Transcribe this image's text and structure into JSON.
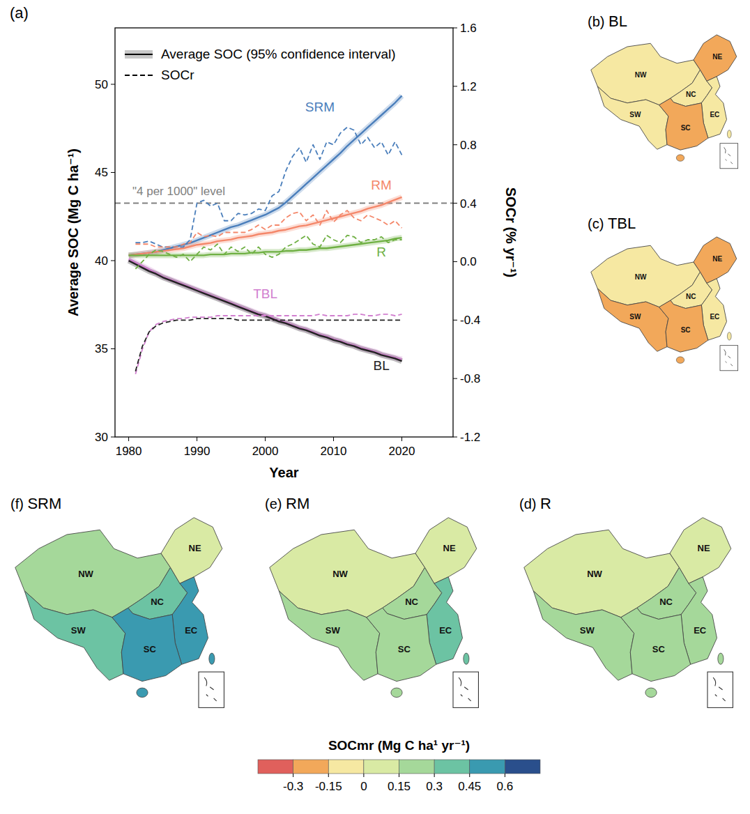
{
  "chart_data": [
    {
      "type": "line",
      "panel": "(a)",
      "x_label": "Year",
      "y_label": "Average SOC (Mg C ha⁻¹)",
      "y2_label": "SOCr (% yr⁻¹)",
      "x": [
        1980,
        1981,
        1982,
        1983,
        1984,
        1985,
        1986,
        1987,
        1988,
        1989,
        1990,
        1991,
        1992,
        1993,
        1994,
        1995,
        1996,
        1997,
        1998,
        1999,
        2000,
        2001,
        2002,
        2003,
        2004,
        2005,
        2006,
        2007,
        2008,
        2009,
        2010,
        2011,
        2012,
        2013,
        2014,
        2015,
        2016,
        2017,
        2018,
        2019,
        2020
      ],
      "xlim": [
        1978,
        2027.5
      ],
      "xticks": [
        1980,
        1990,
        2000,
        2010,
        2020
      ],
      "ylim": [
        30,
        53.2
      ],
      "yticks": [
        30,
        35,
        40,
        45,
        50
      ],
      "y2lim": [
        -1.2,
        1.6
      ],
      "y2ticks": [
        -1.2,
        -0.8,
        -0.4,
        {
          "value": 0,
          "label": "0.0"
        },
        0.4,
        0.8,
        1.2,
        1.6
      ],
      "legend": "upper left",
      "legend_entries": [
        {
          "label": "Average SOC (95% confidence interval)",
          "line_style": "solid"
        },
        {
          "label": "SOCr",
          "line_style": "dashed"
        }
      ],
      "reference_lines": [
        {
          "label": "\"4 per 1000\" level",
          "value": 0.4,
          "axis": "y2",
          "color": "#808080"
        }
      ],
      "series": [
        {
          "name": "SRM",
          "color": "#4a7ebb",
          "line_style": "solid",
          "values": [
            40.3,
            40.35,
            40.4,
            40.45,
            40.5,
            40.6,
            40.7,
            40.8,
            40.9,
            41.0,
            41.15,
            41.3,
            41.45,
            41.6,
            41.75,
            41.9,
            42.0,
            42.15,
            42.3,
            42.45,
            42.6,
            42.8,
            43.0,
            43.3,
            43.65,
            44.0,
            44.35,
            44.7,
            45.05,
            45.4,
            45.75,
            46.1,
            46.5,
            46.85,
            47.2,
            47.55,
            47.9,
            48.25,
            48.6,
            48.95,
            49.35
          ]
        },
        {
          "name": "RM",
          "color": "#f4876a",
          "line_style": "solid",
          "values": [
            40.3,
            40.35,
            40.4,
            40.45,
            40.5,
            40.55,
            40.6,
            40.65,
            40.7,
            40.8,
            40.9,
            40.95,
            41.0,
            41.1,
            41.15,
            41.2,
            41.3,
            41.35,
            41.4,
            41.5,
            41.55,
            41.6,
            41.7,
            41.75,
            41.85,
            41.95,
            42.0,
            42.1,
            42.2,
            42.3,
            42.4,
            42.5,
            42.6,
            42.7,
            42.8,
            42.95,
            43.05,
            43.15,
            43.3,
            43.45,
            43.6
          ]
        },
        {
          "name": "R",
          "color": "#6fb043",
          "line_style": "solid",
          "values": [
            40.3,
            40.3,
            40.3,
            40.3,
            40.3,
            40.3,
            40.3,
            40.3,
            40.3,
            40.3,
            40.3,
            40.3,
            40.35,
            40.35,
            40.35,
            40.4,
            40.4,
            40.4,
            40.45,
            40.45,
            40.5,
            40.5,
            40.5,
            40.55,
            40.55,
            40.6,
            40.6,
            40.65,
            40.7,
            40.7,
            40.75,
            40.8,
            40.85,
            40.9,
            40.95,
            41.0,
            41.05,
            41.1,
            41.15,
            41.25,
            41.3
          ]
        },
        {
          "name": "TBL",
          "color": "#d17fcf",
          "line_style": "solid",
          "values": [
            40.1,
            39.9,
            39.7,
            39.5,
            39.3,
            39.1,
            38.95,
            38.8,
            38.65,
            38.5,
            38.35,
            38.2,
            38.05,
            37.9,
            37.75,
            37.6,
            37.45,
            37.3,
            37.15,
            37.0,
            36.9,
            36.75,
            36.6,
            36.5,
            36.35,
            36.2,
            36.1,
            35.95,
            35.8,
            35.7,
            35.55,
            35.45,
            35.3,
            35.2,
            35.05,
            34.95,
            34.85,
            34.7,
            34.6,
            34.5,
            34.4
          ]
        },
        {
          "name": "BL",
          "color": "#222222",
          "line_style": "solid",
          "values": [
            40.0,
            39.8,
            39.6,
            39.4,
            39.25,
            39.05,
            38.9,
            38.75,
            38.6,
            38.45,
            38.3,
            38.15,
            38.0,
            37.85,
            37.7,
            37.55,
            37.4,
            37.25,
            37.1,
            36.95,
            36.85,
            36.7,
            36.55,
            36.45,
            36.3,
            36.15,
            36.05,
            35.9,
            35.75,
            35.65,
            35.5,
            35.4,
            35.25,
            35.15,
            35.0,
            34.9,
            34.8,
            34.65,
            34.55,
            34.45,
            34.3
          ]
        },
        {
          "color": "#4a7ebb",
          "line_style": "dashed",
          "axis": "y2",
          "values": [
            null,
            0.13,
            0.13,
            0.14,
            0.12,
            0.1,
            0.1,
            0.1,
            0.1,
            0.15,
            0.4,
            0.42,
            0.38,
            0.4,
            0.28,
            0.28,
            0.33,
            0.32,
            0.33,
            0.36,
            0.35,
            0.45,
            0.48,
            0.62,
            0.72,
            0.78,
            0.68,
            0.8,
            0.7,
            0.82,
            0.8,
            0.88,
            0.92,
            0.9,
            0.8,
            0.85,
            0.78,
            0.82,
            0.73,
            0.82,
            0.73
          ]
        },
        {
          "color": "#f4876a",
          "line_style": "dashed",
          "axis": "y2",
          "values": [
            null,
            0.12,
            0.12,
            0.12,
            0.1,
            0.1,
            0.1,
            0.1,
            0.12,
            0.13,
            0.2,
            0.17,
            0.18,
            0.17,
            0.2,
            0.2,
            0.2,
            0.2,
            0.22,
            0.25,
            0.22,
            0.25,
            0.25,
            0.3,
            0.33,
            0.34,
            0.28,
            0.32,
            0.25,
            0.35,
            0.27,
            0.32,
            0.35,
            0.3,
            0.28,
            0.32,
            0.3,
            0.28,
            0.25,
            0.28,
            0.23
          ]
        },
        {
          "color": "#6fb043",
          "line_style": "dashed",
          "axis": "y2",
          "values": [
            null,
            -0.05,
            0,
            0.05,
            0.08,
            0.07,
            0.05,
            0.03,
            0.05,
            0,
            0.05,
            0.1,
            0.08,
            0.12,
            0.05,
            0.1,
            0.07,
            0.1,
            0.05,
            0.1,
            0.05,
            0.03,
            0.05,
            0.1,
            0.12,
            0.15,
            0.18,
            0.12,
            0.1,
            0.18,
            0.15,
            0.13,
            0.18,
            0.17,
            0.13,
            0.15,
            0.15,
            0.17,
            0.13,
            0.15,
            0.15
          ]
        },
        {
          "color": "#d17fcf",
          "line_style": "dashed",
          "axis": "y2",
          "values": [
            null,
            -0.77,
            -0.6,
            -0.48,
            -0.43,
            -0.41,
            -0.4,
            -0.39,
            -0.39,
            -0.38,
            -0.38,
            -0.38,
            -0.38,
            -0.37,
            -0.37,
            -0.37,
            -0.37,
            -0.37,
            -0.37,
            -0.37,
            -0.37,
            -0.37,
            -0.37,
            -0.37,
            -0.37,
            -0.37,
            -0.37,
            -0.37,
            -0.36,
            -0.37,
            -0.37,
            -0.37,
            -0.37,
            -0.36,
            -0.36,
            -0.37,
            -0.37,
            -0.36,
            -0.36,
            -0.37,
            -0.36
          ]
        },
        {
          "color": "#222222",
          "line_style": "dashed",
          "axis": "y2",
          "values": [
            null,
            -0.75,
            -0.58,
            -0.48,
            -0.44,
            -0.42,
            -0.41,
            -0.4,
            -0.4,
            -0.4,
            -0.39,
            -0.39,
            -0.39,
            -0.39,
            -0.39,
            -0.39,
            -0.4,
            -0.4,
            -0.4,
            -0.4,
            -0.4,
            -0.4,
            -0.4,
            -0.4,
            -0.4,
            -0.4,
            -0.4,
            -0.4,
            -0.4,
            -0.4,
            -0.4,
            -0.4,
            -0.4,
            -0.4,
            -0.4,
            -0.4,
            -0.4,
            -0.4,
            -0.4,
            -0.4,
            -0.4
          ]
        }
      ]
    },
    {
      "type": "map",
      "panel": "(b)",
      "title": "BL",
      "regions": [
        {
          "label": "NW",
          "value": -0.05
        },
        {
          "label": "SW",
          "value": -0.15
        },
        {
          "label": "NC",
          "value": -0.1
        },
        {
          "label": "NE",
          "value": -0.2
        },
        {
          "label": "EC",
          "value": -0.1
        },
        {
          "label": "SC",
          "value": -0.2
        }
      ]
    },
    {
      "type": "map",
      "panel": "(c)",
      "title": "TBL",
      "regions": [
        {
          "label": "NW",
          "value": -0.05
        },
        {
          "label": "SW",
          "value": -0.18
        },
        {
          "label": "NC",
          "value": -0.1
        },
        {
          "label": "NE",
          "value": -0.2
        },
        {
          "label": "EC",
          "value": -0.08
        },
        {
          "label": "SC",
          "value": -0.2
        }
      ]
    },
    {
      "type": "map",
      "panel": "(d)",
      "title": "R",
      "regions": [
        {
          "label": "NW",
          "value": 0.1
        },
        {
          "label": "SW",
          "value": 0.15
        },
        {
          "label": "NC",
          "value": 0.2
        },
        {
          "label": "NE",
          "value": 0.05
        },
        {
          "label": "EC",
          "value": 0.25
        },
        {
          "label": "SC",
          "value": 0.15
        }
      ]
    },
    {
      "type": "map",
      "panel": "(e)",
      "title": "RM",
      "regions": [
        {
          "label": "NW",
          "value": 0.1
        },
        {
          "label": "SW",
          "value": 0.2
        },
        {
          "label": "NC",
          "value": 0.25
        },
        {
          "label": "NE",
          "value": 0.05
        },
        {
          "label": "EC",
          "value": 0.3
        },
        {
          "label": "SC",
          "value": 0.25
        }
      ]
    },
    {
      "type": "map",
      "panel": "(f)",
      "title": "SRM",
      "regions": [
        {
          "label": "NW",
          "value": 0.15
        },
        {
          "label": "SW",
          "value": 0.3
        },
        {
          "label": "NC",
          "value": 0.4
        },
        {
          "label": "NE",
          "value": 0.05
        },
        {
          "label": "EC",
          "value": 0.5
        },
        {
          "label": "SC",
          "value": 0.45
        }
      ]
    },
    {
      "type": "colorbar",
      "title": "SOCmr (Mg C ha¹ yr⁻¹)",
      "range": [
        -0.45,
        0.75
      ],
      "ticks": [
        -0.3,
        -0.15,
        0,
        0.15,
        0.3,
        0.45,
        0.6
      ],
      "colors": [
        "#e0605c",
        "#f2a85a",
        "#f6e8a2",
        "#d9eaa4",
        "#a5d89a",
        "#6cc3a3",
        "#3a9ab0",
        "#2a4f8c"
      ]
    }
  ]
}
